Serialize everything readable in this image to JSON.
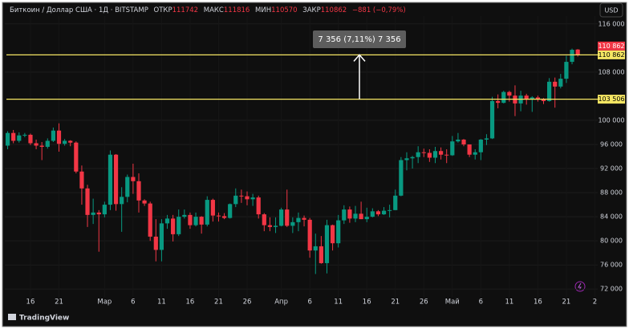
{
  "header": {
    "symbol": "Биткоин / Доллар США · 1Д · BITSTAMP",
    "open_label": "ОТКР",
    "high_label": "МАКС",
    "low_label": "МИН",
    "close_label": "ЗАКР",
    "change": "−881 (−0,79%)",
    "currency": "USD",
    "brand": "TradingView"
  },
  "chart_data": {
    "type": "candlestick",
    "categories": [
      null,
      null,
      null,
      null,
      "16",
      null,
      null,
      null,
      null,
      "21",
      null,
      null,
      null,
      null,
      null,
      null,
      null,
      "Мар",
      null,
      null,
      null,
      null,
      "6",
      null,
      null,
      null,
      null,
      "11",
      null,
      null,
      null,
      null,
      "16",
      null,
      null,
      null,
      null,
      "21",
      null,
      null,
      null,
      null,
      "26",
      null,
      null,
      null,
      null,
      null,
      "Апр",
      null,
      null,
      null,
      null,
      "6",
      null,
      null,
      null,
      null,
      "11",
      null,
      null,
      null,
      null,
      "16",
      null,
      null,
      null,
      null,
      "21",
      null,
      null,
      null,
      null,
      "26",
      null,
      null,
      null,
      null,
      "Май",
      null,
      null,
      null,
      null,
      "6",
      null,
      null,
      null,
      null,
      "11",
      null,
      null,
      null,
      null,
      "16",
      null,
      null,
      null,
      null,
      "21",
      null,
      null,
      null,
      null,
      "2"
    ],
    "open": [
      95800,
      97900,
      96600,
      97500,
      97600,
      96200,
      95800,
      95600,
      96600,
      98300,
      96100,
      96600,
      96300,
      91500,
      88700,
      84300,
      84700,
      84400,
      86000,
      94300,
      86100,
      87300,
      90600,
      89900,
      86700,
      86200,
      80700,
      78500,
      82900,
      83700,
      81100,
      84000,
      84300,
      82600,
      84000,
      82700,
      86800,
      84200,
      84100,
      83800,
      86100,
      87500,
      87400,
      86900,
      87200,
      84400,
      82600,
      82300,
      82500,
      85200,
      82500,
      83100,
      83800,
      83500,
      78400,
      79100,
      76300,
      82600,
      79600,
      83400,
      85200,
      83700,
      84500,
      83600,
      84000,
      84900,
      84400,
      85000,
      85100,
      87500,
      93400,
      93700,
      93900,
      94700,
      94600,
      93800,
      94900,
      94300,
      94200,
      96500,
      96800,
      96000,
      94300,
      94700,
      96800,
      97000,
      103200,
      102900,
      104700,
      104100,
      102800,
      104100,
      103500,
      103800,
      103500,
      103200,
      106400,
      105600,
      106900,
      109700,
      111742,
      null,
      null,
      null
    ],
    "high": [
      98200,
      98400,
      98000,
      97900,
      97800,
      96800,
      96400,
      97000,
      98800,
      99500,
      96900,
      96700,
      96500,
      92500,
      89300,
      87000,
      85100,
      86500,
      95000,
      94400,
      88900,
      91000,
      92800,
      91200,
      86900,
      86500,
      83600,
      83600,
      84300,
      84300,
      85200,
      85200,
      84700,
      84700,
      84100,
      87400,
      87000,
      84700,
      84600,
      86200,
      88700,
      88500,
      88200,
      87800,
      87500,
      84600,
      83900,
      83900,
      85500,
      88500,
      83900,
      84700,
      84200,
      83800,
      81200,
      80800,
      83500,
      82700,
      84300,
      85900,
      85700,
      85800,
      86500,
      85500,
      85400,
      85100,
      85600,
      86000,
      88500,
      93900,
      94700,
      94100,
      95700,
      95300,
      95200,
      95600,
      95500,
      95200,
      97400,
      97900,
      96900,
      96000,
      95200,
      96900,
      97700,
      103900,
      104300,
      104900,
      104900,
      105800,
      104900,
      104400,
      104000,
      104100,
      103700,
      107000,
      107100,
      107700,
      110700,
      111900,
      111816,
      null,
      null,
      null
    ],
    "low": [
      95200,
      96200,
      96300,
      97200,
      95900,
      95200,
      93400,
      95300,
      96400,
      94800,
      95800,
      95700,
      91200,
      86000,
      82300,
      82800,
      78200,
      83900,
      85100,
      85000,
      81500,
      86400,
      87800,
      84700,
      85800,
      80000,
      76600,
      76600,
      82000,
      79900,
      80800,
      83700,
      82000,
      82400,
      81200,
      82400,
      83200,
      83200,
      83600,
      83700,
      85600,
      86300,
      85900,
      85800,
      83700,
      81600,
      81600,
      81300,
      82400,
      82300,
      81300,
      81600,
      82400,
      77200,
      74500,
      76200,
      74600,
      78400,
      78900,
      82800,
      83000,
      83100,
      83600,
      83100,
      83900,
      84100,
      84300,
      83900,
      85100,
      87400,
      91700,
      92000,
      92900,
      93900,
      93100,
      92900,
      93500,
      92900,
      94100,
      96300,
      95700,
      93900,
      93500,
      93400,
      95900,
      96900,
      102000,
      102800,
      103100,
      100700,
      101500,
      102600,
      101400,
      103100,
      102700,
      103100,
      102100,
      105300,
      106200,
      109300,
      110570,
      null,
      null,
      null
    ],
    "close": [
      97900,
      96600,
      97500,
      97600,
      96200,
      95800,
      95600,
      96600,
      98300,
      96100,
      96600,
      96300,
      91500,
      88700,
      84300,
      84700,
      84400,
      86000,
      94300,
      86100,
      87300,
      90600,
      89900,
      86700,
      86200,
      80700,
      78500,
      82900,
      83700,
      81100,
      84000,
      84300,
      82600,
      84000,
      82700,
      86800,
      84200,
      84100,
      83800,
      86100,
      87500,
      87400,
      86900,
      87200,
      84400,
      82600,
      82300,
      82500,
      85200,
      82500,
      83100,
      83800,
      83500,
      78400,
      79100,
      76300,
      82600,
      79600,
      83400,
      85200,
      83700,
      84500,
      83600,
      84000,
      84900,
      84400,
      85000,
      85100,
      87500,
      93400,
      93700,
      93900,
      94700,
      94600,
      93800,
      94900,
      94300,
      94200,
      96500,
      96800,
      96000,
      94300,
      94700,
      96800,
      97000,
      103200,
      102900,
      104700,
      104100,
      102800,
      104100,
      103500,
      103800,
      103500,
      103200,
      106400,
      105600,
      106900,
      109700,
      111700,
      110862,
      null,
      null,
      null
    ],
    "up_color": "#089981",
    "down_color": "#f23645",
    "last_price_label": "110 862",
    "ylim": [
      70700,
      117300
    ],
    "yticks": [
      {
        "value": 116000,
        "label": "116 000"
      },
      {
        "value": 108000,
        "label": "108 000"
      },
      {
        "value": 100000,
        "label": "100 000"
      },
      {
        "value": 96000,
        "label": "96 000"
      },
      {
        "value": 92000,
        "label": "92 000"
      },
      {
        "value": 88000,
        "label": "88 000"
      },
      {
        "value": 84000,
        "label": "84 000"
      },
      {
        "value": 80000,
        "label": "80 000"
      },
      {
        "value": 76000,
        "label": "76 000"
      },
      {
        "value": 72000,
        "label": "72 000"
      }
    ],
    "grid": true,
    "horizontal_lines": [
      {
        "value": 110862,
        "label": "110 862",
        "color": "#f5e663"
      },
      {
        "value": 103506,
        "label": "103 506",
        "color": "#f5e663"
      }
    ],
    "annotation": "7 356 (7,11%) 7 356"
  }
}
